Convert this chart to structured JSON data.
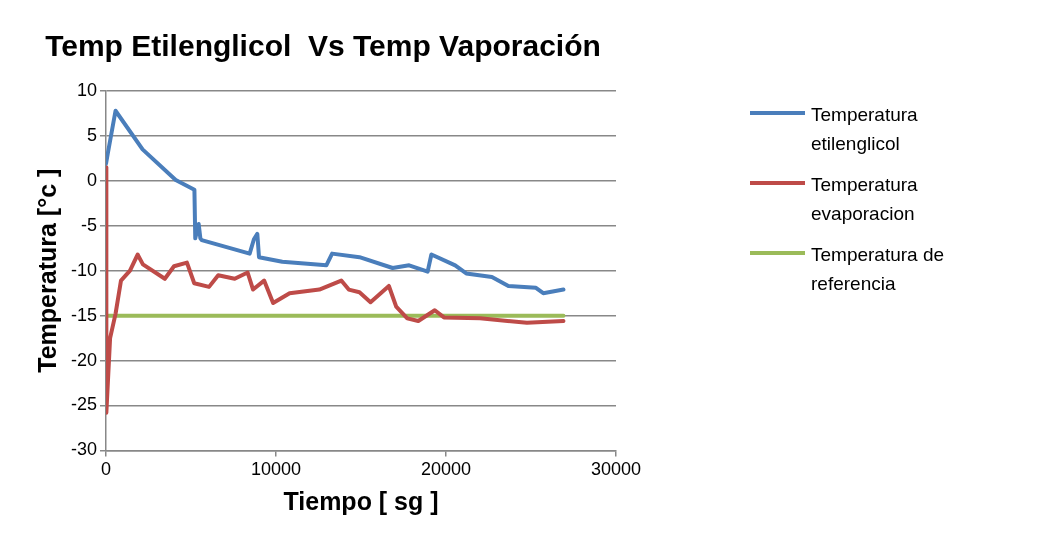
{
  "chart_data": {
    "type": "line",
    "title": "Temp Etilenglicol  Vs Temp Vaporación",
    "xlabel": "Tiempo [ sg ]",
    "ylabel": "Temperatura [°c ]",
    "xlim": [
      0,
      30000
    ],
    "xticks": [
      0,
      10000,
      20000,
      30000
    ],
    "ylim": [
      -30,
      10
    ],
    "yticks": [
      -30,
      -25,
      -20,
      -15,
      -10,
      -5,
      0,
      5,
      10
    ],
    "grid": "y",
    "legend": "right",
    "marker": "none",
    "line_style": "solid",
    "series": [
      {
        "name": "Temperatura etilenglicol",
        "color": "#4a7ebb",
        "x": [
          0,
          100,
          560,
          2150,
          4100,
          5200,
          5250,
          5450,
          5550,
          5630,
          8450,
          8700,
          8900,
          9000,
          10370,
          12960,
          13300,
          14910,
          16860,
          17830,
          18920,
          19140,
          20540,
          21190,
          22700,
          23670,
          25290,
          25720,
          26910
        ],
        "values": [
          1.9,
          3,
          7.8,
          3.5,
          0.1,
          -1.0,
          -6.4,
          -4.8,
          -6.4,
          -6.6,
          -8.1,
          -6.5,
          -5.9,
          -8.5,
          -9.0,
          -9.4,
          -8.1,
          -8.5,
          -9.7,
          -9.4,
          -10.1,
          -8.2,
          -9.4,
          -10.3,
          -10.7,
          -11.7,
          -11.9,
          -12.5,
          -12.1
        ]
      },
      {
        "name": "Temperatura evaporacion",
        "color": "#be4b48",
        "x": [
          0,
          20,
          240,
          560,
          880,
          1410,
          1860,
          2170,
          3460,
          4000,
          4760,
          5190,
          6060,
          6600,
          7570,
          8330,
          8650,
          9300,
          9830,
          10800,
          12550,
          13840,
          14280,
          14910,
          15560,
          16640,
          17070,
          17720,
          18370,
          19340,
          19880,
          22000,
          24760,
          26910
        ],
        "values": [
          1.5,
          -25.8,
          -17.5,
          -14.8,
          -11.1,
          -10,
          -8.2,
          -9.3,
          -10.9,
          -9.5,
          -9.1,
          -11.4,
          -11.8,
          -10.5,
          -10.9,
          -10.2,
          -12.1,
          -11.1,
          -13.6,
          -12.5,
          -12.1,
          -11.1,
          -12.1,
          -12.4,
          -13.5,
          -11.7,
          -14.0,
          -15.3,
          -15.6,
          -14.4,
          -15.2,
          -15.3,
          -15.8,
          -15.6
        ]
      },
      {
        "name": "Temperatura de referencia",
        "color": "#9bbb59",
        "x": [
          0,
          26910
        ],
        "values": [
          -15,
          -15
        ]
      }
    ]
  }
}
